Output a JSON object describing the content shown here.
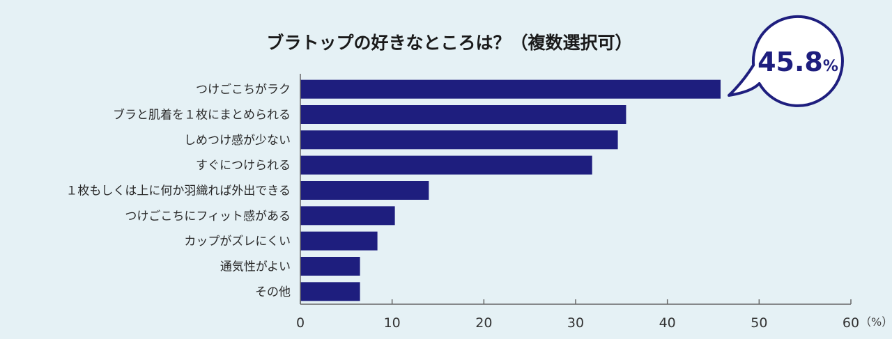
{
  "chart_data": {
    "type": "bar",
    "orientation": "horizontal",
    "title": "ブラトップの好きなところは？（複数選択可）",
    "categories": [
      "つけごこちがラク",
      "ブラと肌着を１枚にまとめられる",
      "しめつけ感が少ない",
      "すぐにつけられる",
      "１枚もしくは上に何か羽織れば外出できる",
      "つけごこちにフィット感がある",
      "カップがズレにくい",
      "通気性がよい",
      "その他"
    ],
    "values": [
      45.8,
      35.5,
      34.6,
      31.8,
      14.0,
      10.3,
      8.4,
      6.5,
      6.5
    ],
    "xlim": [
      0,
      60
    ],
    "xticks": [
      "0",
      "10",
      "20",
      "30",
      "40",
      "50",
      "60"
    ],
    "xunit": "（%）",
    "grid": false,
    "bar_color": "#1e1e7e",
    "callout": {
      "number": "45.8",
      "percent": "%",
      "color": "#1e1e7e"
    }
  }
}
